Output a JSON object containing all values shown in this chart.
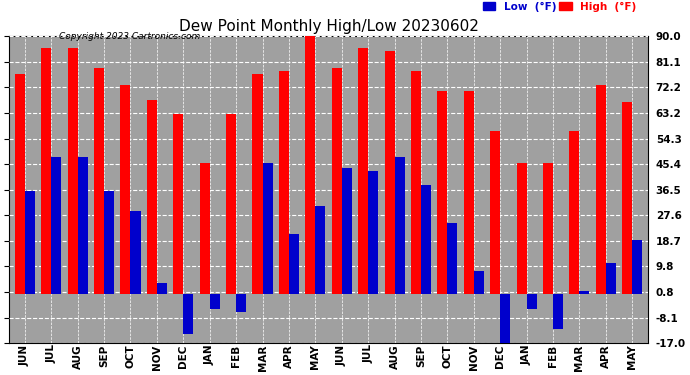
{
  "title": "Dew Point Monthly High/Low 20230602",
  "copyright": "Copyright 2023 Cartronics.com",
  "months": [
    "JUN",
    "JUL",
    "AUG",
    "SEP",
    "OCT",
    "NOV",
    "DEC",
    "JAN",
    "FEB",
    "MAR",
    "APR",
    "MAY",
    "JUN",
    "JUL",
    "AUG",
    "SEP",
    "OCT",
    "NOV",
    "DEC",
    "JAN",
    "FEB",
    "MAR",
    "APR",
    "MAY"
  ],
  "high_values": [
    77.0,
    86.0,
    86.0,
    79.0,
    73.0,
    68.0,
    63.0,
    46.0,
    63.0,
    77.0,
    78.0,
    90.0,
    79.0,
    86.0,
    85.0,
    78.0,
    71.0,
    71.0,
    57.0,
    46.0,
    46.0,
    57.0,
    73.0,
    67.0
  ],
  "low_values": [
    36.0,
    48.0,
    48.0,
    36.0,
    29.0,
    4.0,
    -14.0,
    -5.0,
    -6.0,
    46.0,
    21.0,
    31.0,
    44.0,
    43.0,
    48.0,
    38.0,
    25.0,
    8.0,
    -17.0,
    -5.0,
    -12.0,
    1.0,
    11.0,
    19.0
  ],
  "ylim": [
    -17.0,
    90.0
  ],
  "yticks": [
    90.0,
    81.1,
    72.2,
    63.2,
    54.3,
    45.4,
    36.5,
    27.6,
    18.7,
    9.8,
    0.8,
    -8.1,
    -17.0
  ],
  "high_color": "#ff0000",
  "low_color": "#0000cc",
  "bar_width": 0.38,
  "bg_color": "#ffffff",
  "plot_bg_color": "#a0a0a0",
  "grid_color": "#ffffff",
  "title_fontsize": 11,
  "tick_fontsize": 7.5,
  "xlabel_fontsize": 7.5
}
